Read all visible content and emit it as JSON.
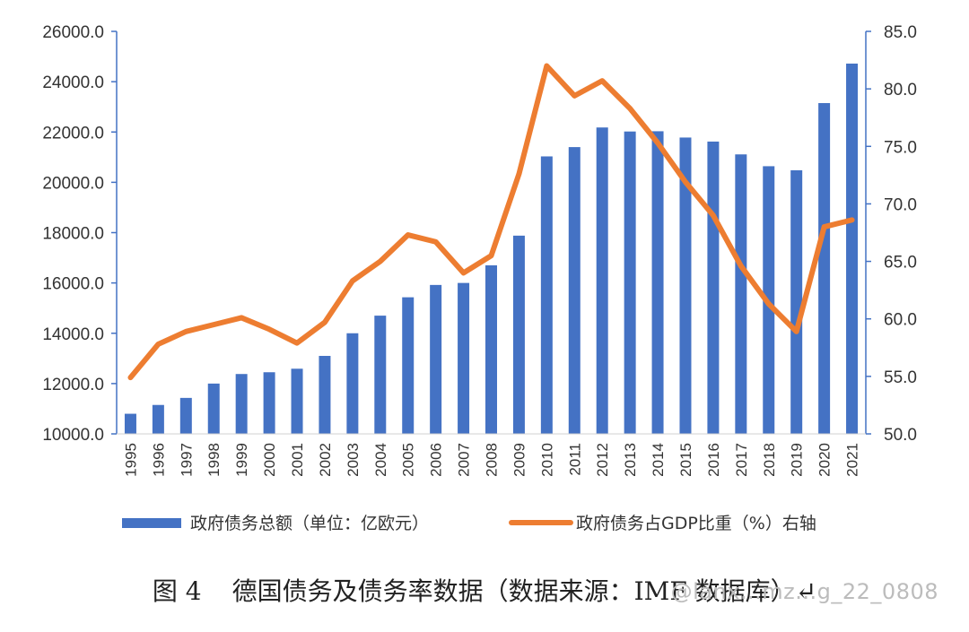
{
  "chart_data": {
    "type": "bar+line",
    "categories": [
      "1995",
      "1996",
      "1997",
      "1998",
      "1999",
      "2000",
      "2001",
      "2002",
      "2003",
      "2004",
      "2005",
      "2006",
      "2007",
      "2008",
      "2009",
      "2010",
      "2011",
      "2012",
      "2013",
      "2014",
      "2015",
      "2016",
      "2017",
      "2018",
      "2019",
      "2020",
      "2021"
    ],
    "series": [
      {
        "name": "政府债务总额（单位：亿欧元）",
        "type": "bar",
        "axis": "left",
        "color": "#4472C4",
        "values": [
          10800,
          11150,
          11430,
          12000,
          12380,
          12450,
          12590,
          13100,
          14000,
          14700,
          15430,
          15920,
          16000,
          16700,
          17880,
          21030,
          21400,
          22180,
          22020,
          22030,
          21780,
          21620,
          21110,
          20640,
          20480,
          23150,
          24720
        ]
      },
      {
        "name": "政府债务占GDP比重（%）右轴",
        "type": "line",
        "axis": "right",
        "color": "#ED7D31",
        "values": [
          54.9,
          57.8,
          58.9,
          59.5,
          60.1,
          59.1,
          57.9,
          59.7,
          63.3,
          65.0,
          67.3,
          66.7,
          64.0,
          65.5,
          72.6,
          82.0,
          79.4,
          80.7,
          78.3,
          75.3,
          71.9,
          69.0,
          64.6,
          61.3,
          58.9,
          68.0,
          68.6
        ]
      }
    ],
    "yleft": {
      "ylim": [
        10000,
        26000
      ],
      "ticks": [
        "10000.0",
        "12000.0",
        "14000.0",
        "16000.0",
        "18000.0",
        "20000.0",
        "22000.0",
        "24000.0",
        "26000.0"
      ]
    },
    "yright": {
      "ylim": [
        50,
        85
      ],
      "ticks": [
        "50.0",
        "55.0",
        "60.0",
        "65.0",
        "70.0",
        "75.0",
        "80.0",
        "85.0"
      ]
    },
    "grid": false,
    "legend_position": "bottom"
  },
  "caption": {
    "figure_label": "图 4",
    "text": "德国债务及债务率数据（数据来源：IMF 数据库）↵"
  },
  "watermark": "@lanx...mz...g_22_0808"
}
